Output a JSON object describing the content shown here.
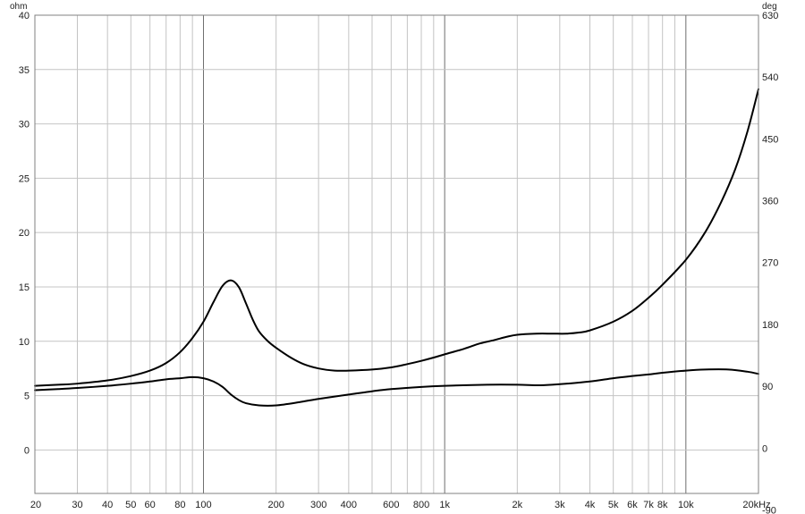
{
  "chart_data": {
    "type": "line",
    "y_unit_left": "ohm",
    "y_unit_right": "deg",
    "x_scale": "log",
    "xlim": [
      20,
      20000
    ],
    "ylim": [
      -4,
      40
    ],
    "y2lim": [
      -66,
      630
    ],
    "grid": true,
    "x_tick_labels": [
      {
        "v": 20,
        "t": "20"
      },
      {
        "v": 30,
        "t": "30"
      },
      {
        "v": 40,
        "t": "40"
      },
      {
        "v": 50,
        "t": "50"
      },
      {
        "v": 60,
        "t": "60"
      },
      {
        "v": 80,
        "t": "80"
      },
      {
        "v": 100,
        "t": "100"
      },
      {
        "v": 200,
        "t": "200"
      },
      {
        "v": 300,
        "t": "300"
      },
      {
        "v": 400,
        "t": "400"
      },
      {
        "v": 600,
        "t": "600"
      },
      {
        "v": 800,
        "t": "800"
      },
      {
        "v": 1000,
        "t": "1k"
      },
      {
        "v": 2000,
        "t": "2k"
      },
      {
        "v": 3000,
        "t": "3k"
      },
      {
        "v": 4000,
        "t": "4k"
      },
      {
        "v": 5000,
        "t": "5k"
      },
      {
        "v": 6000,
        "t": "6k"
      },
      {
        "v": 7000,
        "t": "7k"
      },
      {
        "v": 8000,
        "t": "8k"
      },
      {
        "v": 10000,
        "t": "10k"
      },
      {
        "v": 20000,
        "t": "20kHz"
      }
    ],
    "y_ticks_left": [
      0,
      5,
      10,
      15,
      20,
      25,
      30,
      35,
      40
    ],
    "y_ticks_right": [
      -90,
      0,
      90,
      180,
      270,
      360,
      450,
      540,
      630
    ],
    "series": [
      {
        "axis": "left",
        "points": [
          [
            20,
            5.9
          ],
          [
            25,
            6.0
          ],
          [
            30,
            6.1
          ],
          [
            40,
            6.4
          ],
          [
            50,
            6.8
          ],
          [
            60,
            7.3
          ],
          [
            70,
            8.0
          ],
          [
            80,
            9.0
          ],
          [
            90,
            10.3
          ],
          [
            100,
            11.8
          ],
          [
            110,
            13.6
          ],
          [
            120,
            15.1
          ],
          [
            130,
            15.6
          ],
          [
            140,
            15.0
          ],
          [
            150,
            13.5
          ],
          [
            160,
            12.0
          ],
          [
            170,
            10.9
          ],
          [
            185,
            10.0
          ],
          [
            200,
            9.4
          ],
          [
            230,
            8.5
          ],
          [
            260,
            7.9
          ],
          [
            300,
            7.5
          ],
          [
            350,
            7.3
          ],
          [
            400,
            7.3
          ],
          [
            500,
            7.4
          ],
          [
            600,
            7.6
          ],
          [
            700,
            7.9
          ],
          [
            800,
            8.2
          ],
          [
            900,
            8.5
          ],
          [
            1000,
            8.8
          ],
          [
            1200,
            9.3
          ],
          [
            1400,
            9.8
          ],
          [
            1600,
            10.1
          ],
          [
            1800,
            10.4
          ],
          [
            2000,
            10.6
          ],
          [
            2400,
            10.7
          ],
          [
            2800,
            10.7
          ],
          [
            3200,
            10.7
          ],
          [
            3600,
            10.8
          ],
          [
            4000,
            11.0
          ],
          [
            5000,
            11.8
          ],
          [
            6000,
            12.8
          ],
          [
            7000,
            14.0
          ],
          [
            8000,
            15.2
          ],
          [
            10000,
            17.5
          ],
          [
            12000,
            20.0
          ],
          [
            14000,
            22.8
          ],
          [
            16000,
            25.8
          ],
          [
            18000,
            29.3
          ],
          [
            20000,
            33.2
          ]
        ]
      },
      {
        "axis": "left",
        "points": [
          [
            20,
            5.5
          ],
          [
            25,
            5.6
          ],
          [
            30,
            5.7
          ],
          [
            40,
            5.9
          ],
          [
            50,
            6.1
          ],
          [
            60,
            6.3
          ],
          [
            70,
            6.5
          ],
          [
            80,
            6.6
          ],
          [
            90,
            6.7
          ],
          [
            100,
            6.6
          ],
          [
            110,
            6.3
          ],
          [
            120,
            5.8
          ],
          [
            130,
            5.1
          ],
          [
            140,
            4.6
          ],
          [
            150,
            4.3
          ],
          [
            170,
            4.1
          ],
          [
            200,
            4.1
          ],
          [
            250,
            4.4
          ],
          [
            300,
            4.7
          ],
          [
            400,
            5.1
          ],
          [
            500,
            5.4
          ],
          [
            600,
            5.6
          ],
          [
            800,
            5.8
          ],
          [
            1000,
            5.9
          ],
          [
            1500,
            6.0
          ],
          [
            2000,
            6.0
          ],
          [
            2500,
            5.95
          ],
          [
            3000,
            6.05
          ],
          [
            4000,
            6.3
          ],
          [
            5000,
            6.6
          ],
          [
            6000,
            6.8
          ],
          [
            7000,
            6.95
          ],
          [
            8000,
            7.1
          ],
          [
            10000,
            7.3
          ],
          [
            12000,
            7.4
          ],
          [
            15000,
            7.4
          ],
          [
            18000,
            7.2
          ],
          [
            20000,
            7.0
          ]
        ]
      }
    ]
  }
}
